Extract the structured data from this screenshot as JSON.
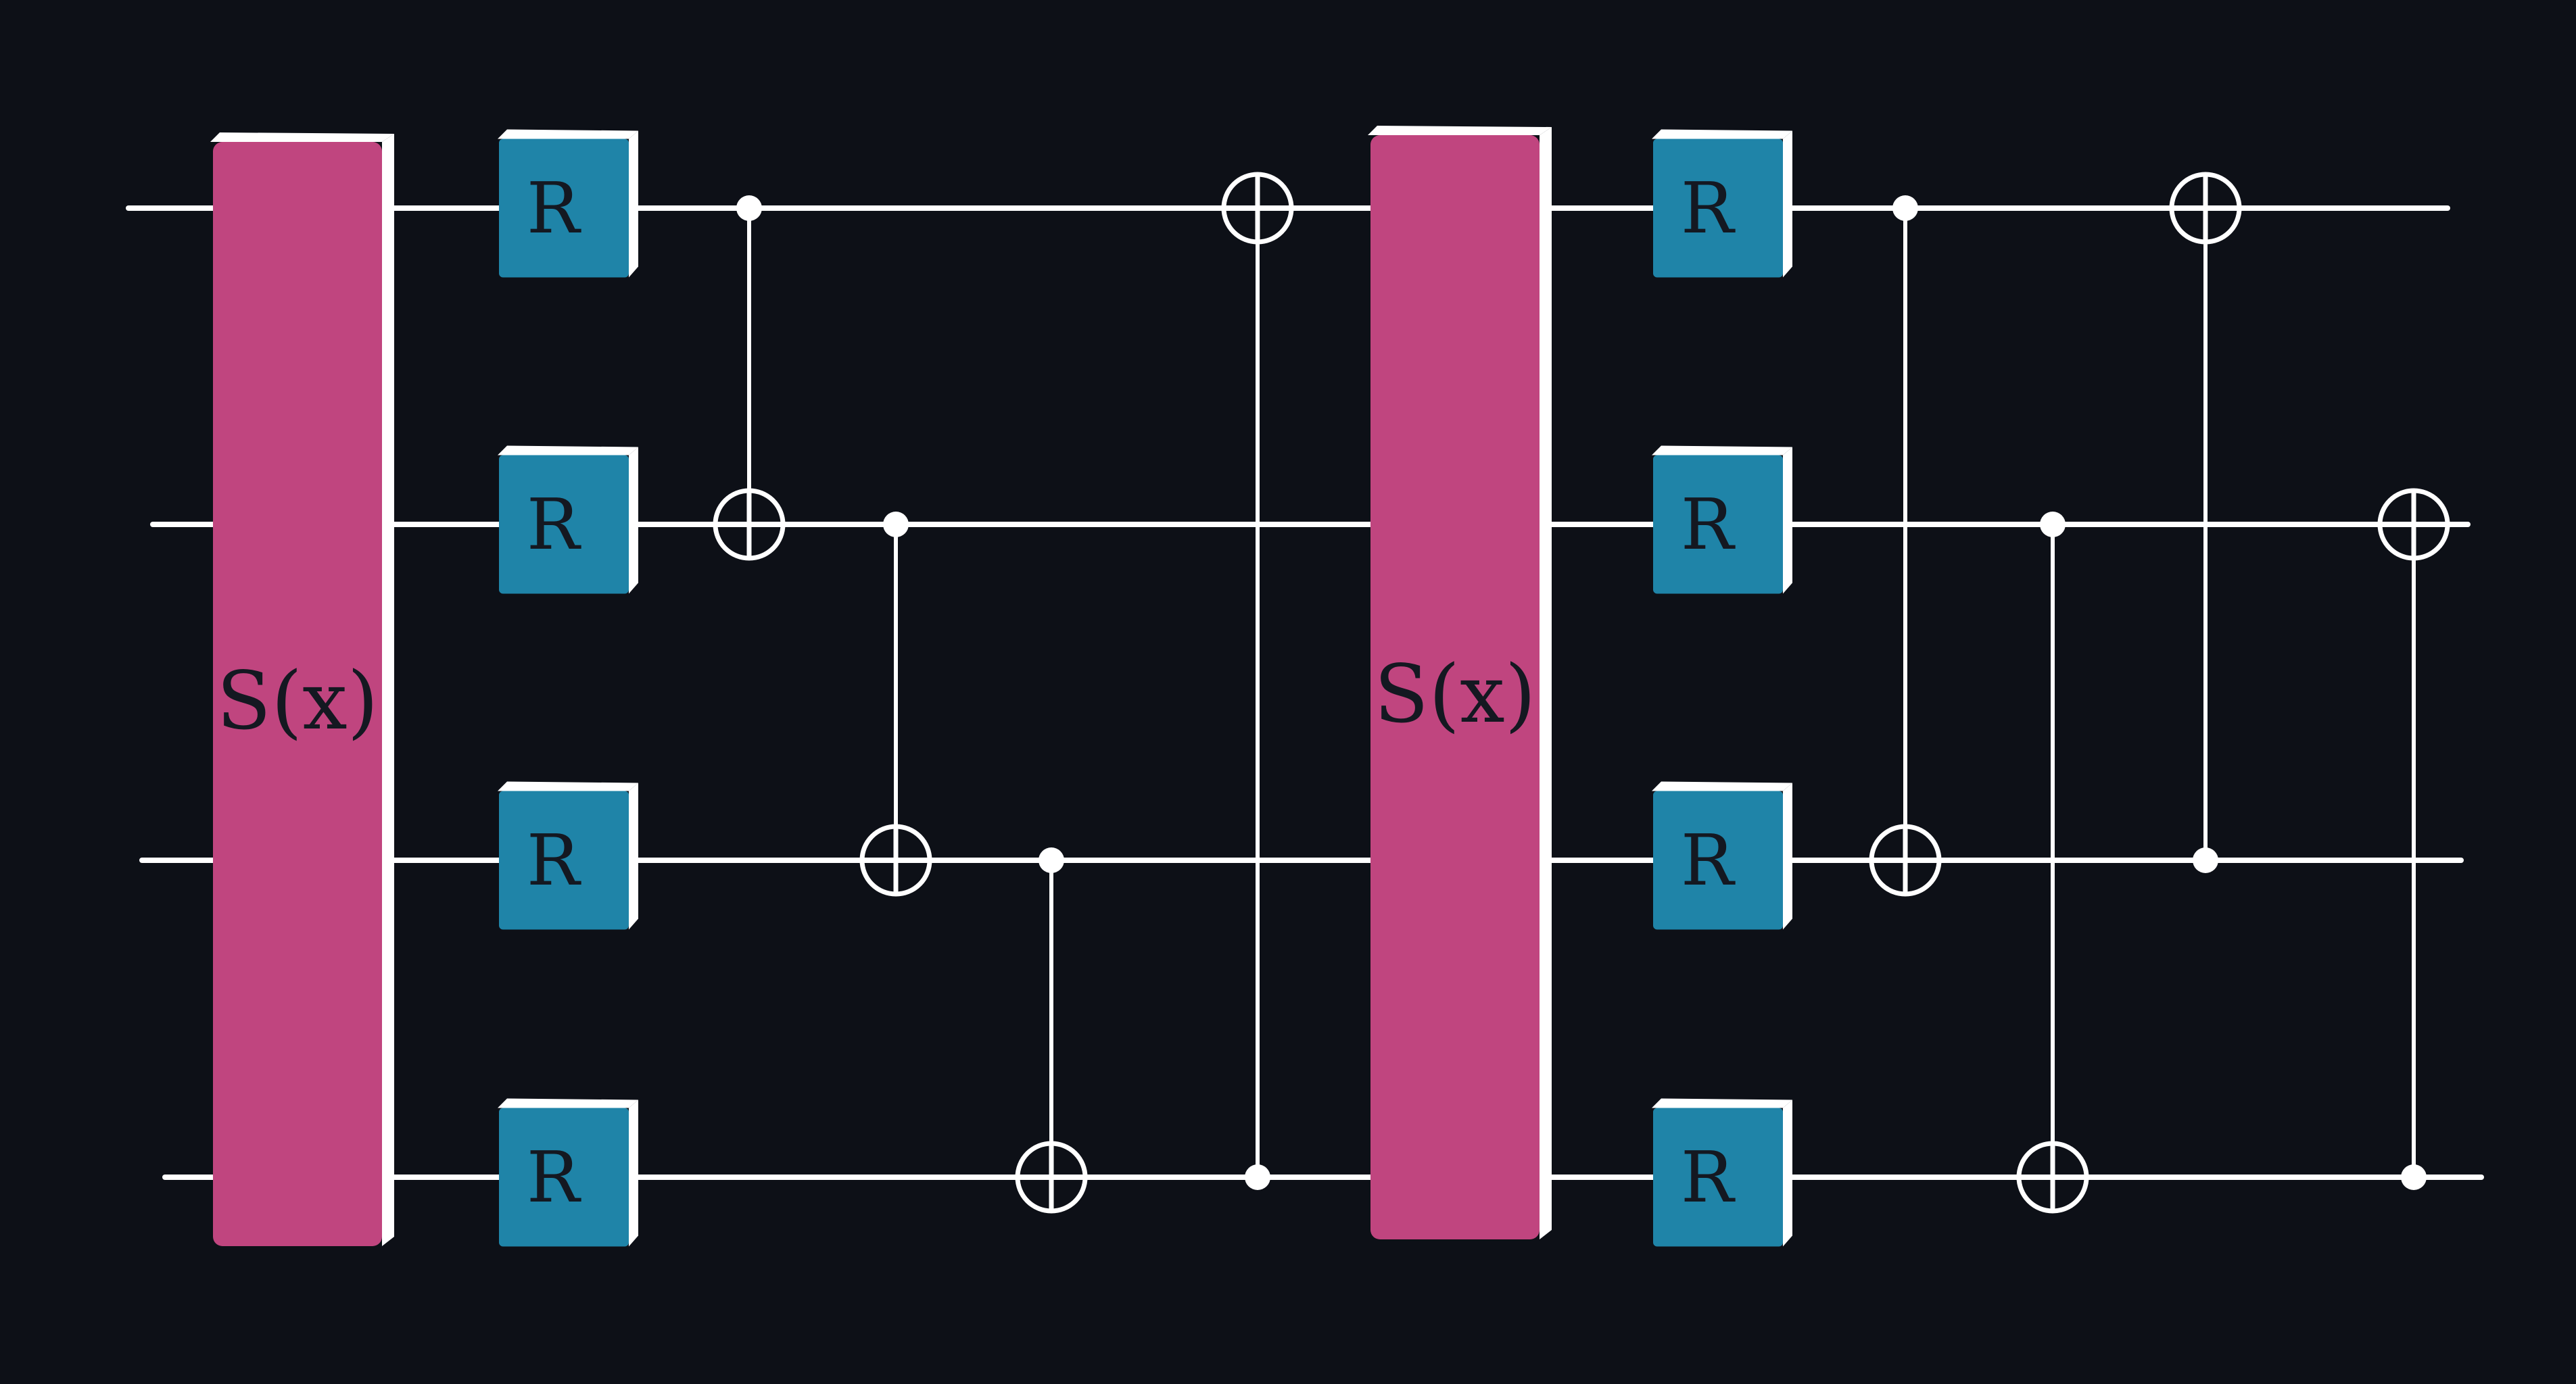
{
  "diagram": {
    "type": "quantum-circuit",
    "qubit_count": 4,
    "colors": {
      "background": "#0d1017",
      "wire": "#ffffff",
      "encoding_gate": "#c0457f",
      "rotation_gate": "#1f84a8",
      "gate_text": "#141821"
    },
    "layers": [
      {
        "encoding": {
          "label": "S(x)",
          "qubits": [
            0,
            1,
            2,
            3
          ]
        },
        "rotations": [
          {
            "label": "R",
            "qubit": 0
          },
          {
            "label": "R",
            "qubit": 1
          },
          {
            "label": "R",
            "qubit": 2
          },
          {
            "label": "R",
            "qubit": 3
          }
        ],
        "cnots": [
          {
            "control": 0,
            "target": 1
          },
          {
            "control": 1,
            "target": 2
          },
          {
            "control": 2,
            "target": 3
          },
          {
            "control": 3,
            "target": 0
          }
        ]
      },
      {
        "encoding": {
          "label": "S(x)",
          "qubits": [
            0,
            1,
            2,
            3
          ]
        },
        "rotations": [
          {
            "label": "R",
            "qubit": 0
          },
          {
            "label": "R",
            "qubit": 1
          },
          {
            "label": "R",
            "qubit": 2
          },
          {
            "label": "R",
            "qubit": 3
          }
        ],
        "cnots": [
          {
            "control": 0,
            "target": 2
          },
          {
            "control": 1,
            "target": 3
          },
          {
            "control": 2,
            "target": 0
          },
          {
            "control": 3,
            "target": 1
          }
        ]
      }
    ]
  }
}
